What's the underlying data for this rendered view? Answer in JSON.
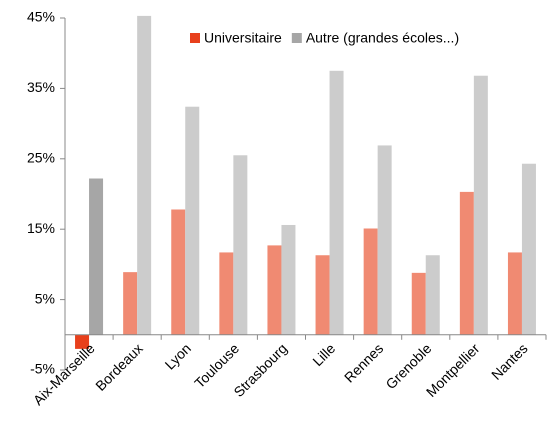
{
  "chart_data": {
    "type": "bar",
    "categories": [
      "Aix-Marseille",
      "Bordeaux",
      "Lyon",
      "Toulouse",
      "Strasbourg",
      "Lille",
      "Rennes",
      "Grenoble",
      "Montpellier",
      "Nantes"
    ],
    "series": [
      {
        "name": "Universitaire",
        "color": "#e8401c",
        "colors": [
          "#e8401c",
          "#f08a72",
          "#f08a72",
          "#f08a72",
          "#f08a72",
          "#f08a72",
          "#f08a72",
          "#f08a72",
          "#f08a72",
          "#f08a72"
        ],
        "values": [
          -2,
          8.9,
          17.8,
          11.7,
          12.7,
          11.3,
          15.1,
          8.8,
          20.3,
          11.7
        ]
      },
      {
        "name": "Autre (grandes écoles...)",
        "color": "#a6a6a6",
        "colors": [
          "#a6a6a6",
          "#cccccc",
          "#cccccc",
          "#cccccc",
          "#cccccc",
          "#cccccc",
          "#cccccc",
          "#cccccc",
          "#cccccc",
          "#cccccc"
        ],
        "values": [
          22.2,
          45.3,
          32.4,
          25.5,
          15.6,
          37.5,
          26.9,
          11.3,
          36.8,
          24.3
        ]
      }
    ],
    "ylim": [
      -5,
      45
    ],
    "yticks": [
      {
        "value": -5,
        "label": "-5%"
      },
      {
        "value": 5,
        "label": "5%"
      },
      {
        "value": 15,
        "label": "15%"
      },
      {
        "value": 25,
        "label": "25%"
      },
      {
        "value": 35,
        "label": "35%"
      },
      {
        "value": 45,
        "label": "45%"
      }
    ],
    "grid": false,
    "legend": "top"
  }
}
